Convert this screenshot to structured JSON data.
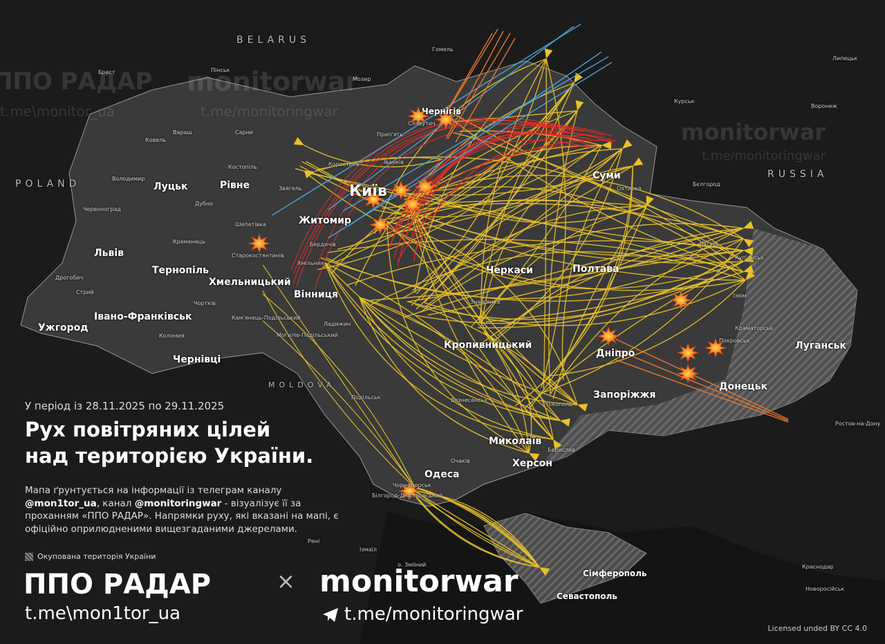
{
  "colors": {
    "background": "#1b1b1b",
    "territory": "#3a3a3a",
    "shahed_track": "#e8c22a",
    "missile_track": "#e0302a",
    "ballistic_track": "#4aa8e0",
    "cruise_track": "#f07a30",
    "occupied_hatch": "#888888"
  },
  "countries": {
    "belarus": "BELARUS",
    "poland": "POLAND",
    "moldova": "MOLDOVA",
    "russia": "RUSSIA"
  },
  "cities": {
    "major": [
      "Київ",
      "Чернігів",
      "Житомир",
      "Суми",
      "Луцьк",
      "Рівне",
      "Львів",
      "Тернопіль",
      "Хмельницький",
      "Вінниця",
      "Черкаси",
      "Полтава",
      "Ужгород",
      "Івано-Франківськ",
      "Чернівці",
      "Кропивницький",
      "Дніпро",
      "Запоріжжя",
      "Миколаїв",
      "Херсон",
      "Одеса",
      "Луганськ",
      "Донецьк",
      "Сімферополь",
      "Севастополь"
    ],
    "minor": [
      "Брест",
      "Пінськ",
      "Мозир",
      "Гомель",
      "Курськ",
      "Воронеж",
      "Липецьк",
      "Бєлгород",
      "Вараш",
      "Сарни",
      "Ковель",
      "Костопіль",
      "Володимир",
      "Дубно",
      "Звягель",
      "Коростень",
      "Іванків",
      "Прип'ять",
      "Славутич",
      "Шепетівка",
      "Старокостянтинів",
      "Червоноград",
      "Кременець",
      "Дрогобич",
      "Стрий",
      "Чортків",
      "Бердичів",
      "Хмільник",
      "Ладижин",
      "Могилів-Подільський",
      "Кам'янець-Подільський",
      "Коломия",
      "Охтирка",
      "Чугуїв",
      "Куп'янськ",
      "Ізюм",
      "Краматорськ",
      "Покровськ",
      "Нікополь",
      "Знам'янка",
      "Подільськ",
      "Вознесенськ",
      "Очаків",
      "Берислав",
      "Чорноморськ",
      "Білгород-Дністровський",
      "Рені",
      "Ізмаїл",
      "о. Зміїний",
      "Краснодар",
      "Новоросійськ",
      "Ростов-на-Дону"
    ]
  },
  "watermarks": [
    "ППО РАДАР",
    "monitorwar",
    "t.me\\monitor_ua",
    "t.me/monitoringwar"
  ],
  "info": {
    "period": "У період із 28.11.2025 по 29.11.2025",
    "title_line1": "Рух повітряних цілей",
    "title_line2": "над територією України.",
    "desc_part1": "Мапа ґрунтується на інформації із телеграм каналу ",
    "desc_handle1": "@mon1tor_ua",
    "desc_part2": ", канал ",
    "desc_handle2": "@monitoringwar",
    "desc_part3": " - візуалізує її за проханням «ППО РАДАР». Напрямки руху, які вказані на мапі, є офіційно оприлюдненими вищезгаданими джерелами.",
    "legend_occupied": "Окупована територія України"
  },
  "footer": {
    "brand1": "ППО РАДАР",
    "times": "×",
    "brand2": "monitorwar",
    "link1": "t.me\\mon1tor_ua",
    "link2": "t.me/monitoringwar",
    "license": "Licensed unded BY CC 4.0",
    "telegram_icon": "telegram-icon"
  }
}
